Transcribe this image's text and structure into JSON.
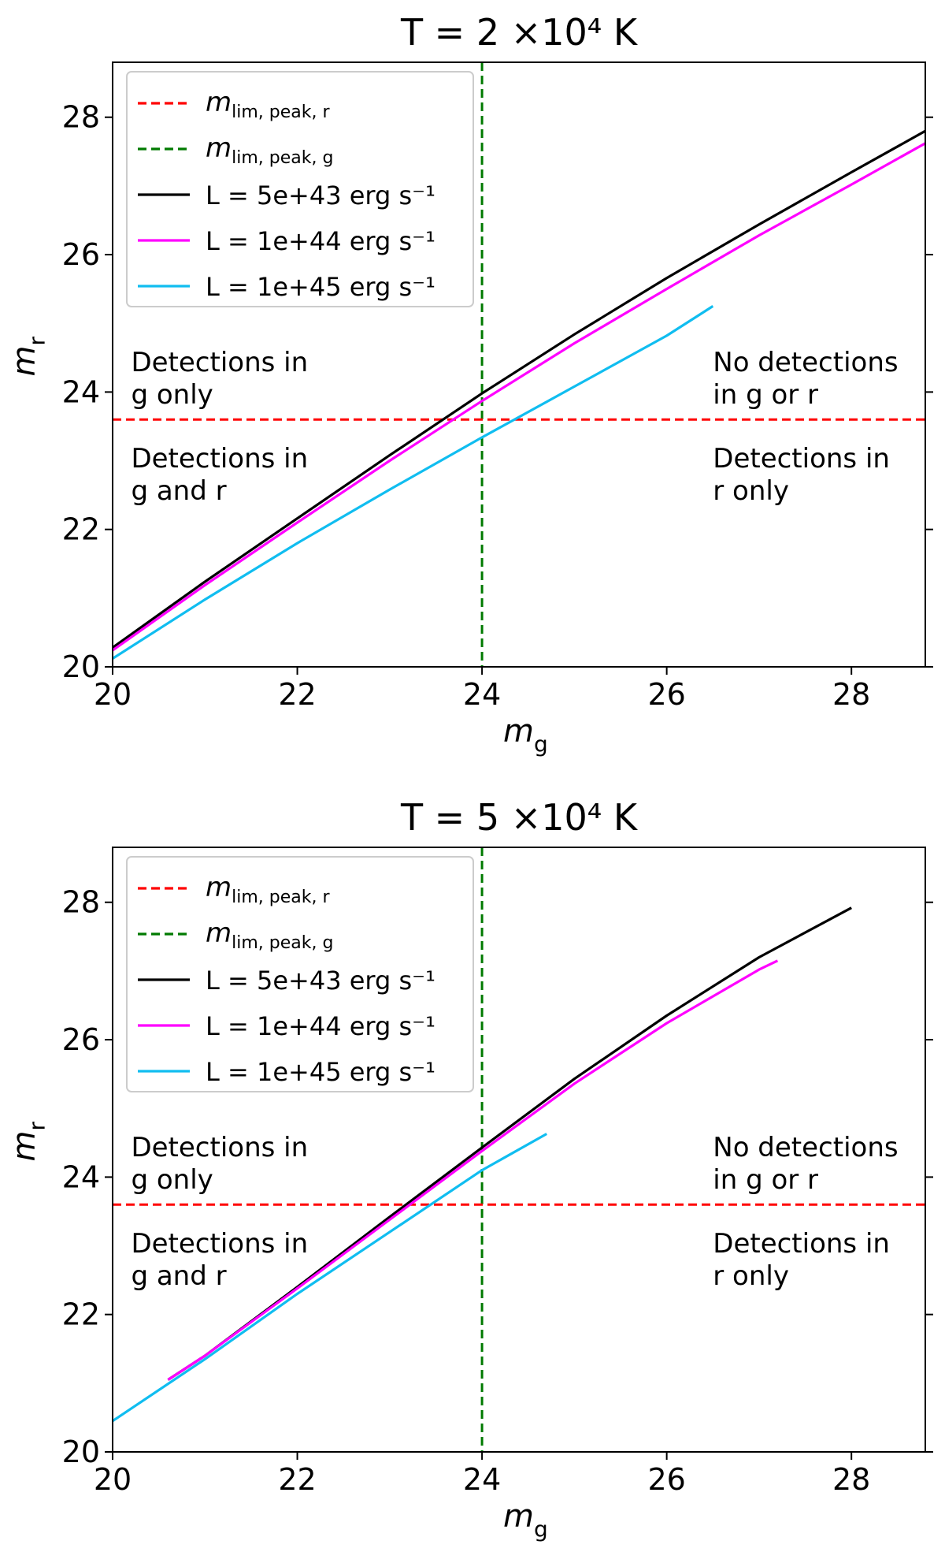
{
  "chart_data": [
    {
      "type": "line",
      "title": "T = 2 ×10⁴ K",
      "xlabel": "m_g",
      "ylabel": "m_r",
      "xlim": [
        20,
        28.8
      ],
      "ylim": [
        20,
        28.8
      ],
      "xticks": [
        "20",
        "22",
        "24",
        "26",
        "28"
      ],
      "yticks": [
        "20",
        "22",
        "24",
        "26",
        "28"
      ],
      "grid": false,
      "legend_position": "top-left",
      "hlines": [
        {
          "name": "m_lim,peak,r",
          "y": 23.6,
          "color": "#ff0000",
          "style": "dashed"
        }
      ],
      "vlines": [
        {
          "name": "m_lim,peak,g",
          "x": 24.0,
          "color": "#007a00",
          "style": "dashed"
        }
      ],
      "series": [
        {
          "name": "L = 5e+43 erg s⁻¹",
          "color": "#000000",
          "x": [
            20.0,
            21.0,
            22.0,
            23.0,
            24.0,
            25.0,
            26.0,
            27.0,
            28.0,
            28.8
          ],
          "y": [
            20.28,
            21.24,
            22.16,
            23.08,
            23.98,
            24.84,
            25.66,
            26.44,
            27.2,
            27.8
          ]
        },
        {
          "name": "L = 1e+44 erg s⁻¹",
          "color": "#ff00ff",
          "x": [
            20.0,
            21.0,
            22.0,
            23.0,
            24.0,
            25.0,
            26.0,
            27.0,
            28.0,
            28.8
          ],
          "y": [
            20.24,
            21.19,
            22.1,
            23.0,
            23.87,
            24.71,
            25.5,
            26.28,
            27.02,
            27.62
          ]
        },
        {
          "name": "L = 1e+45 erg s⁻¹",
          "color": "#10bdf0",
          "x": [
            20.0,
            21.0,
            22.0,
            23.0,
            24.0,
            25.0,
            26.0,
            26.5
          ],
          "y": [
            20.12,
            20.98,
            21.8,
            22.58,
            23.34,
            24.08,
            24.82,
            25.25
          ]
        }
      ],
      "annotations": [
        {
          "line1": "Detections in",
          "line2": "g only",
          "x": 20.2,
          "y": 24.3
        },
        {
          "line1": "No detections",
          "line2": "in g or r",
          "x": 26.5,
          "y": 24.3
        },
        {
          "line1": "Detections in",
          "line2": "g and r",
          "x": 20.2,
          "y": 22.9
        },
        {
          "line1": "Detections in",
          "line2": "r only",
          "x": 26.5,
          "y": 22.9
        }
      ]
    },
    {
      "type": "line",
      "title": "T = 5 ×10⁴ K",
      "xlabel": "m_g",
      "ylabel": "m_r",
      "xlim": [
        20,
        28.8
      ],
      "ylim": [
        20,
        28.8
      ],
      "xticks": [
        "20",
        "22",
        "24",
        "26",
        "28"
      ],
      "yticks": [
        "20",
        "22",
        "24",
        "26",
        "28"
      ],
      "grid": false,
      "legend_position": "top-left",
      "hlines": [
        {
          "name": "m_lim,peak,r",
          "y": 23.6,
          "color": "#ff0000",
          "style": "dashed"
        }
      ],
      "vlines": [
        {
          "name": "m_lim,peak,g",
          "x": 24.0,
          "color": "#007a00",
          "style": "dashed"
        }
      ],
      "series": [
        {
          "name": "L = 5e+43 erg s⁻¹",
          "color": "#000000",
          "x": [
            20.6,
            21.0,
            22.0,
            23.0,
            24.0,
            25.0,
            26.0,
            27.0,
            28.0
          ],
          "y": [
            21.05,
            21.4,
            22.4,
            23.42,
            24.43,
            25.43,
            26.35,
            27.2,
            27.92
          ]
        },
        {
          "name": "L = 1e+44 erg s⁻¹",
          "color": "#ff00ff",
          "x": [
            20.6,
            21.0,
            22.0,
            23.0,
            24.0,
            25.0,
            26.0,
            27.0,
            27.2
          ],
          "y": [
            21.05,
            21.4,
            22.38,
            23.38,
            24.38,
            25.36,
            26.24,
            27.02,
            27.15
          ]
        },
        {
          "name": "L = 1e+45 erg s⁻¹",
          "color": "#10bdf0",
          "x": [
            20.0,
            21.0,
            22.0,
            23.0,
            24.0,
            24.7
          ],
          "y": [
            20.45,
            21.35,
            22.3,
            23.2,
            24.1,
            24.63
          ]
        }
      ],
      "annotations": [
        {
          "line1": "Detections in",
          "line2": "g only",
          "x": 20.2,
          "y": 24.3
        },
        {
          "line1": "No detections",
          "line2": "in g or r",
          "x": 26.5,
          "y": 24.3
        },
        {
          "line1": "Detections in",
          "line2": "g and r",
          "x": 20.2,
          "y": 22.9
        },
        {
          "line1": "Detections in",
          "line2": "r only",
          "x": 26.5,
          "y": 22.9
        }
      ]
    }
  ]
}
